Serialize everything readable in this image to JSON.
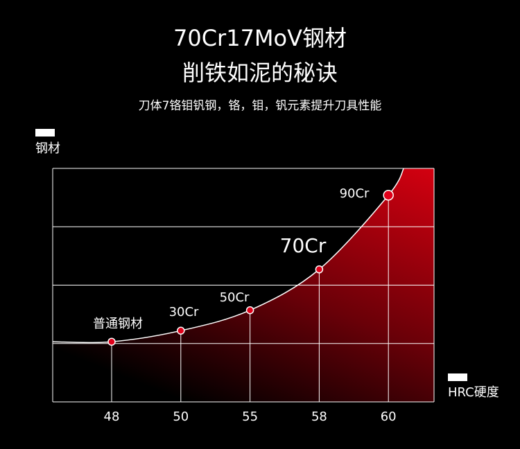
{
  "chart_data": {
    "type": "line",
    "title": "70Cr17MoV钢材",
    "subtitle": "削铁如泥的秘诀",
    "description": "刀体7铬钼钒钢，铬，钼，钒元素提升刀具性能",
    "y_label": "钢材",
    "x_label": "HRC硬度",
    "categories": [
      "48",
      "50",
      "55",
      "58",
      "60"
    ],
    "values": [
      1.03,
      1.22,
      1.57,
      2.27,
      3.54
    ],
    "point_labels": [
      "普通钢材",
      "30Cr",
      "50Cr",
      "70Cr",
      "90Cr"
    ],
    "color": "#e0001a",
    "ylim": [
      0,
      4
    ],
    "yticks": [
      0,
      1,
      2,
      3,
      4
    ],
    "grid": true
  }
}
